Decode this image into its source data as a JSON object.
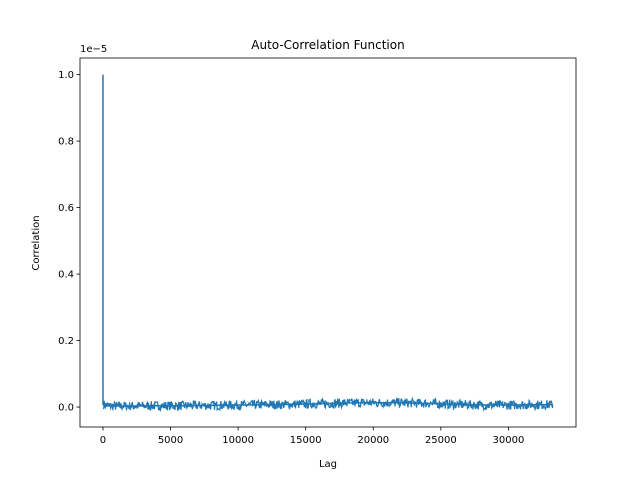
{
  "chart_data": {
    "type": "line",
    "title": "Auto-Correlation Function",
    "xlabel": "Lag",
    "ylabel": "Correlation",
    "offset_label": "1e−5",
    "xlim": [
      -1700,
      35000
    ],
    "ylim": [
      -0.06,
      1.05
    ],
    "xticks": [
      0,
      5000,
      10000,
      15000,
      20000,
      25000,
      30000
    ],
    "yticks": [
      0.0,
      0.2,
      0.4,
      0.6,
      0.8,
      1.0
    ],
    "ytick_labels": [
      "0.0",
      "0.2",
      "0.4",
      "0.6",
      "0.8",
      "1.0"
    ],
    "grid": false,
    "series": [
      {
        "color": "#1f77b4",
        "note_values_scaled_by": "1e-5",
        "x": [
          0,
          1,
          500,
          2000,
          4000,
          6000,
          8000,
          10000,
          12000,
          14000,
          16000,
          18000,
          20000,
          22000,
          24000,
          26000,
          28000,
          30000,
          32000,
          33300
        ],
        "y": [
          1.0,
          0.008,
          0.003,
          0.003,
          0.004,
          0.004,
          0.005,
          0.006,
          0.007,
          0.008,
          0.01,
          0.012,
          0.013,
          0.013,
          0.011,
          0.008,
          0.006,
          0.006,
          0.007,
          0.007
        ]
      }
    ]
  }
}
